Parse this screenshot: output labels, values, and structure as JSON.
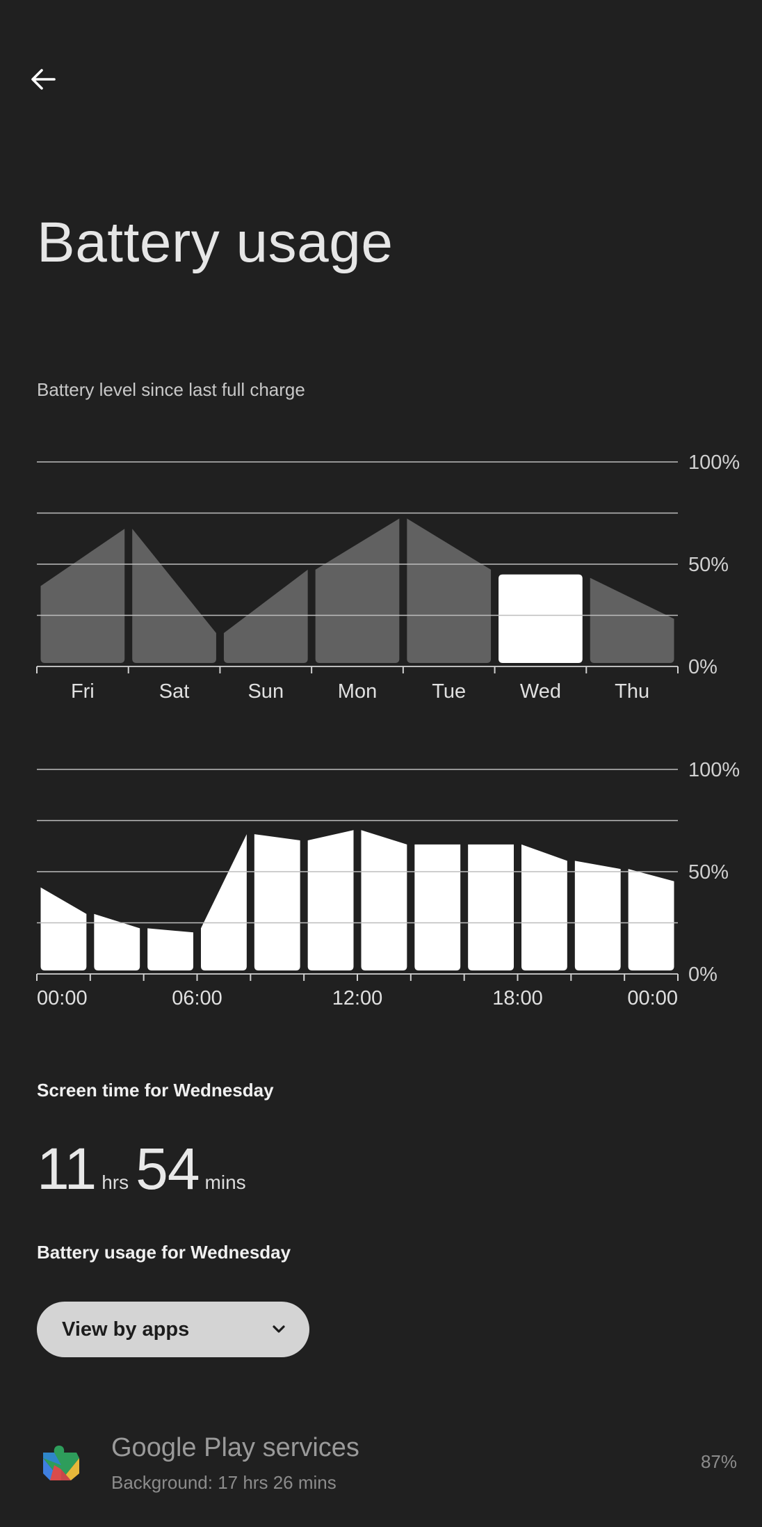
{
  "header": {
    "back_icon": "arrow-back-icon",
    "title": "Battery usage"
  },
  "battery_section_label": "Battery level since last full charge",
  "chart_data": [
    {
      "type": "area",
      "name": "daily",
      "categories": [
        "Fri",
        "Sat",
        "Sun",
        "Mon",
        "Tue",
        "Wed",
        "Thu"
      ],
      "selected_category": "Wed",
      "segments": [
        [
          40,
          68
        ],
        [
          68,
          17
        ],
        [
          17,
          48
        ],
        [
          48,
          73
        ],
        [
          73,
          48
        ],
        [
          45,
          45
        ],
        [
          44,
          24
        ]
      ],
      "y_ticks": [
        "100%",
        "50%",
        "0%"
      ],
      "ylim": [
        0,
        100
      ],
      "gridlines": [
        0,
        25,
        50,
        75,
        100
      ],
      "colors": {
        "bar": "#616161",
        "selected": "#ffffff",
        "grid": "#bdbdbd"
      }
    },
    {
      "type": "area",
      "name": "hourly",
      "x_tick_labels": [
        "00:00",
        "06:00",
        "12:00",
        "18:00",
        "00:00"
      ],
      "tick_count": 13,
      "segments": [
        [
          43,
          30
        ],
        [
          30,
          23
        ],
        [
          23,
          21
        ],
        [
          23,
          69
        ],
        [
          69,
          66
        ],
        [
          66,
          71
        ],
        [
          71,
          64
        ],
        [
          64,
          64
        ],
        [
          64,
          64
        ],
        [
          64,
          56
        ],
        [
          56,
          52
        ],
        [
          52,
          46
        ]
      ],
      "y_ticks": [
        "100%",
        "50%",
        "0%"
      ],
      "ylim": [
        0,
        100
      ],
      "gridlines": [
        0,
        25,
        50,
        75,
        100
      ],
      "colors": {
        "bar": "#ffffff",
        "grid": "#bdbdbd"
      }
    }
  ],
  "screen_time": {
    "label": "Screen time for Wednesday",
    "hours": "11",
    "hours_unit": "hrs",
    "minutes": "54",
    "minutes_unit": "mins"
  },
  "usage": {
    "label": "Battery usage for Wednesday",
    "view_selector": "View by apps",
    "dropdown_icon": "chevron-down-icon"
  },
  "apps": [
    {
      "icon": "google-play-services-icon",
      "name": "Google Play services",
      "detail": "Background: 17 hrs 26 mins",
      "percent": "87%"
    }
  ]
}
